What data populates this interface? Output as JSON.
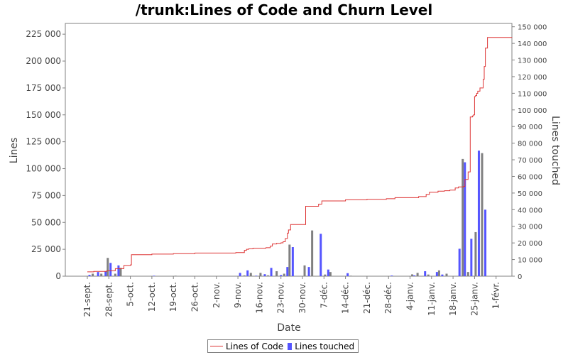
{
  "chart_data": {
    "type": "bar",
    "title": "/trunk:Lines of Code and Churn Level",
    "xlabel": "Date",
    "ylabel": "Lines",
    "y2label": "Lines touched",
    "ylim": [
      0,
      235000
    ],
    "y2lim": [
      0,
      152000
    ],
    "yticks": [
      "0",
      "25 000",
      "50 000",
      "75 000",
      "100 000",
      "125 000",
      "150 000",
      "175 000",
      "200 000",
      "225 000"
    ],
    "y2ticks": [
      "0",
      "10 000",
      "20 000",
      "30 000",
      "40 000",
      "50 000",
      "60 000",
      "70 000",
      "80 000",
      "90 000",
      "100 000",
      "110 000",
      "120 000",
      "130 000",
      "140 000",
      "150 000"
    ],
    "categories": [
      "21-sept.",
      "28-sept.",
      "5-oct.",
      "12-oct.",
      "19-oct.",
      "26-oct.",
      "2-nov.",
      "9-nov.",
      "16-nov.",
      "23-nov.",
      "30-nov.",
      "7-déc.",
      "14-déc.",
      "21-déc.",
      "28-déc.",
      "4-janv.",
      "11-janv.",
      "18-janv.",
      "25-janv.",
      "1-févr."
    ],
    "legend": {
      "position": "bottom",
      "items": [
        "Lines of Code",
        "Lines touched"
      ]
    },
    "grid": false,
    "series": [
      {
        "name": "Lines of Code",
        "kind": "step-line",
        "color": "#dd3333",
        "x": [
          0,
          0.3,
          0.9,
          1.3,
          1.7,
          2.0,
          2.05,
          3.0,
          4.0,
          5.0,
          6.0,
          6.9,
          7.3,
          7.4,
          7.5,
          7.7,
          8.0,
          8.3,
          8.5,
          8.6,
          8.8,
          9.0,
          9.1,
          9.2,
          9.3,
          9.35,
          9.45,
          10.1,
          10.15,
          10.5,
          10.75,
          10.9,
          11.0,
          12.0,
          13.0,
          13.9,
          14.3,
          15.0,
          15.4,
          15.75,
          15.9,
          16.3,
          16.6,
          16.85,
          17.1,
          17.25,
          17.5,
          17.55,
          17.7,
          17.8,
          17.85,
          17.9,
          17.95,
          18.0,
          18.05,
          18.1,
          18.15,
          18.25,
          18.4,
          18.45,
          18.5,
          18.6,
          19.0
        ],
        "values": [
          4000,
          4500,
          5000,
          7000,
          10000,
          10500,
          20000,
          20500,
          21000,
          21500,
          21500,
          22000,
          24000,
          25000,
          25500,
          26000,
          26000,
          26500,
          28000,
          30000,
          30500,
          31000,
          32000,
          35000,
          40000,
          43000,
          48000,
          48000,
          65000,
          65000,
          67000,
          70000,
          70000,
          71000,
          71500,
          72000,
          73000,
          73000,
          74000,
          76000,
          78000,
          79000,
          79500,
          80000,
          82000,
          83000,
          83500,
          90000,
          97000,
          148000,
          148000,
          149000,
          150000,
          167000,
          168000,
          170000,
          172000,
          175000,
          183000,
          195000,
          212000,
          222000,
          222000
        ]
      },
      {
        "name": "Lines touched",
        "kind": "bar",
        "colors": [
          "#5555ff",
          "#808080"
        ],
        "x": [
          0.1,
          0.25,
          0.5,
          0.65,
          0.85,
          0.95,
          1.08,
          1.3,
          1.45,
          1.55,
          3.1,
          4.1,
          7.1,
          7.3,
          7.45,
          7.6,
          7.85,
          8.05,
          8.25,
          8.4,
          8.55,
          8.8,
          9.0,
          9.15,
          9.3,
          9.4,
          9.55,
          10.1,
          10.3,
          10.45,
          10.85,
          11.05,
          11.2,
          11.3,
          12.1,
          12.25,
          14.15,
          15.1,
          15.2,
          15.35,
          15.7,
          15.85,
          16.25,
          16.35,
          16.5,
          16.7,
          17.3,
          17.45,
          17.55,
          17.7,
          17.85,
          18.05,
          18.2,
          18.35,
          18.5
        ],
        "values": [
          800,
          1500,
          2500,
          1500,
          3000,
          11000,
          8000,
          1500,
          6500,
          5000,
          300,
          300,
          2000,
          500,
          3500,
          2000,
          300,
          2000,
          1200,
          500,
          5000,
          3000,
          700,
          1500,
          5500,
          19000,
          17500,
          6500,
          5500,
          27500,
          25500,
          1000,
          4000,
          2500,
          1800,
          300,
          400,
          1100,
          500,
          2000,
          3000,
          1000,
          2500,
          3500,
          1000,
          1500,
          16500,
          70500,
          68500,
          2500,
          22500,
          26500,
          75500,
          74000,
          40000
        ]
      }
    ]
  }
}
